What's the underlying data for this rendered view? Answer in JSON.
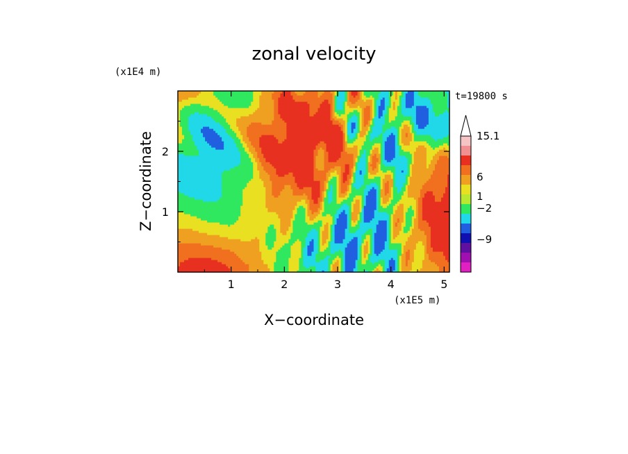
{
  "chart_data": {
    "type": "heatmap",
    "title": "zonal velocity",
    "xlabel": "X−coordinate",
    "ylabel": "Z−coordinate",
    "x_scale_label": "(x1E5 m)",
    "y_scale_label": "(x1E4 m)",
    "time_label": "t=19800 s",
    "xlim": [
      0.0,
      5.1
    ],
    "ylim": [
      0.0,
      3.0
    ],
    "x_ticks": [
      1,
      2,
      3,
      4,
      5
    ],
    "y_ticks": [
      1,
      2
    ],
    "x_tick_labels": [
      "1",
      "2",
      "3",
      "4",
      "5"
    ],
    "y_tick_labels": [
      "1",
      "2"
    ],
    "colorbar": {
      "levels": [
        "15.1",
        "6",
        "1",
        "−2",
        "−9"
      ],
      "colors_top_to_bottom": [
        "#f6c4c4",
        "#f09090",
        "#e83020",
        "#f07020",
        "#f0a020",
        "#e8e020",
        "#b8e830",
        "#30e860",
        "#20d8e8",
        "#2060e0",
        "#1010b0",
        "#6010a0",
        "#a010b0",
        "#e020c0"
      ],
      "extend_max": true
    },
    "field_colors": {
      "strong_negative": "#1010b0",
      "negative": "#2060e0",
      "weak_negative": "#20d8e8",
      "near_zero": "#30e860",
      "weak_positive": "#e8e020",
      "positive": "#f0a020",
      "strong_positive": "#f07020",
      "max_positive": "#e83020"
    }
  }
}
